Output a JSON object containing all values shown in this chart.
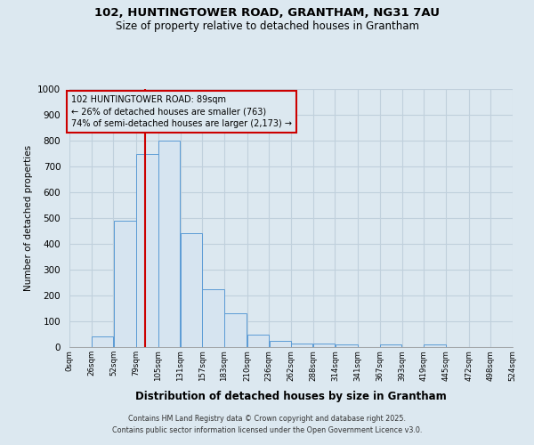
{
  "title_line1": "102, HUNTINGTOWER ROAD, GRANTHAM, NG31 7AU",
  "title_line2": "Size of property relative to detached houses in Grantham",
  "xlabel": "Distribution of detached houses by size in Grantham",
  "ylabel": "Number of detached properties",
  "annotation_line1": "102 HUNTINGTOWER ROAD: 89sqm",
  "annotation_line2": "← 26% of detached houses are smaller (763)",
  "annotation_line3": "74% of semi-detached houses are larger (2,173) →",
  "property_size": 89,
  "bar_left_edges": [
    0,
    26,
    52,
    79,
    105,
    131,
    157,
    183,
    210,
    236,
    262,
    288,
    314,
    341,
    367,
    393,
    419,
    445,
    472,
    498
  ],
  "bar_widths": [
    26,
    26,
    27,
    26,
    26,
    26,
    26,
    27,
    26,
    26,
    26,
    26,
    27,
    26,
    26,
    26,
    26,
    27,
    26,
    26
  ],
  "bar_heights": [
    0,
    40,
    490,
    750,
    800,
    440,
    225,
    130,
    50,
    25,
    15,
    15,
    10,
    0,
    10,
    0,
    10,
    0,
    0,
    0
  ],
  "tick_labels": [
    "0sqm",
    "26sqm",
    "52sqm",
    "79sqm",
    "105sqm",
    "131sqm",
    "157sqm",
    "183sqm",
    "210sqm",
    "236sqm",
    "262sqm",
    "288sqm",
    "314sqm",
    "341sqm",
    "367sqm",
    "393sqm",
    "419sqm",
    "445sqm",
    "472sqm",
    "498sqm",
    "524sqm"
  ],
  "bar_color": "#d6e4f0",
  "bar_edge_color": "#5b9bd5",
  "vline_color": "#cc0000",
  "vline_x": 89,
  "ylim": [
    0,
    1000
  ],
  "yticks": [
    0,
    100,
    200,
    300,
    400,
    500,
    600,
    700,
    800,
    900,
    1000
  ],
  "annotation_box_color": "#cc0000",
  "footer_line1": "Contains HM Land Registry data © Crown copyright and database right 2025.",
  "footer_line2": "Contains public sector information licensed under the Open Government Licence v3.0.",
  "background_color": "#dce8f0",
  "plot_bg_color": "#dce8f0",
  "grid_color": "#c0d0dc"
}
